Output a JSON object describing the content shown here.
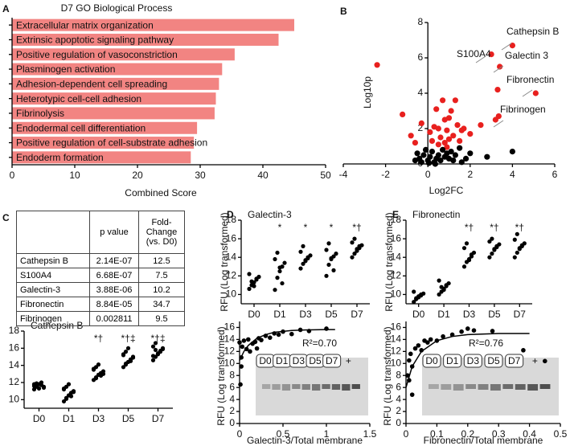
{
  "panel_labels": [
    "A",
    "B",
    "C",
    "D",
    "E"
  ],
  "table": {
    "header": [
      "p value",
      "Fold-Change (vs. D0)"
    ],
    "rows": [
      [
        "Cathepsin B",
        "2.14E-07",
        "12.5"
      ],
      [
        "S100A4",
        "6.68E-07",
        "7.5"
      ],
      [
        "Galectin-3",
        "3.88E-06",
        "10.2"
      ],
      [
        "Fibronectin",
        "8.84E-05",
        "34.7"
      ],
      [
        "Fibrinogen",
        "0.002811",
        "9.5"
      ]
    ]
  },
  "chart_data": [
    {
      "type": "hbar",
      "title": "D7 GO Biological Process",
      "x_label": "Combined Score",
      "color": "#f28482",
      "categories": [
        "Extracellular matrix organization",
        "Extrinsic apoptotic signaling pathway",
        "Positive regulation of vasoconstriction",
        "Plasminogen activation",
        "Adhesion-dependent cell spreading",
        "Heterotypic cell-cell adhesion",
        "Fibrinolysis",
        "Endodermal cell differentiation",
        "Positive regulation of cell-substrate adhesion",
        "Endoderm formation"
      ],
      "values": [
        45,
        42.5,
        35.5,
        33.5,
        33,
        32.5,
        32.3,
        29.5,
        29,
        28.5
      ],
      "xlim": [
        0,
        50
      ],
      "xticks": [
        0,
        10,
        20,
        30,
        40,
        50
      ]
    },
    {
      "type": "scatter",
      "x_label": "Log2FC",
      "y_label": "Log10p",
      "xlim": [
        -4,
        6
      ],
      "ylim": [
        0,
        8
      ],
      "xticks": [
        -4,
        -2,
        0,
        2,
        4,
        6
      ],
      "yticks": [
        0,
        2,
        4,
        6,
        8
      ],
      "annotations": [
        "Cathepsin B",
        "S100A4",
        "Galectin 3",
        "Fibronectin",
        "Fibrinogen"
      ],
      "series": [
        {
          "color": "#e8201e",
          "x": [
            -2.4,
            -1.2,
            -0.3,
            0.1,
            0.3,
            0.4,
            0.5,
            0.6,
            0.7,
            0.8,
            0.9,
            1.0,
            1.1,
            1.2,
            1.3,
            1.4,
            1.5,
            0.8,
            1.6,
            1.7,
            -0.6,
            0.2,
            0.5,
            1.0,
            2.0,
            2.5,
            3.3,
            3.0,
            3.4,
            4.0,
            5.1,
            3.2,
            3.35,
            -0.8,
            0.9
          ],
          "values": [
            5.6,
            2.8,
            2.3,
            1.8,
            2.1,
            3.1,
            2.0,
            1.5,
            3.6,
            2.5,
            1.9,
            2.6,
            3.0,
            1.6,
            3.6,
            2.2,
            1.3,
            1.2,
            1.9,
            2.0,
            1.2,
            1.3,
            1.1,
            1.4,
            1.7,
            2.2,
            4.2,
            6.2,
            5.5,
            6.7,
            4.0,
            2.5,
            2.7,
            1.6,
            0.95
          ]
        },
        {
          "color": "#000000",
          "x": [
            -0.5,
            -0.4,
            -0.3,
            -0.2,
            -0.1,
            0,
            0.1,
            0.2,
            0.3,
            0.4,
            0.5,
            0.6,
            0.7,
            0.8,
            0.9,
            1.0,
            1.1,
            1.2,
            1.3,
            1.5,
            1.8,
            2.0,
            2.8,
            4.0,
            -0.6,
            0.05,
            0.35,
            1.6
          ],
          "values": [
            0.6,
            0.3,
            0.1,
            0.5,
            0.8,
            0.2,
            0.4,
            0.7,
            0.1,
            0.3,
            0.5,
            0.2,
            0.8,
            0.4,
            0.6,
            0.3,
            0.7,
            0.2,
            0.5,
            0.9,
            0.3,
            0.6,
            0.4,
            0.7,
            0.2,
            0.05,
            0,
            0.1
          ]
        }
      ]
    },
    {
      "type": "dot",
      "title": "Cathepsin B",
      "categories": [
        "D0",
        "D1",
        "D3",
        "D5",
        "D7"
      ],
      "ylim": [
        9,
        18
      ],
      "yticks": [
        10,
        12,
        14,
        16,
        18
      ],
      "markers": [
        null,
        null,
        "*†",
        "*†‡",
        "*†‡"
      ],
      "values": [
        [
          11.2,
          11.5,
          11.8,
          12.0,
          11.4,
          11.6,
          11.9,
          11.3,
          11.7,
          11.5,
          11.8,
          11.6
        ],
        [
          9.8,
          10.2,
          10.5,
          10.8,
          11.0,
          11.2,
          11.5,
          11.8,
          10.4,
          10.9,
          11.3,
          10.1
        ],
        [
          12.3,
          12.6,
          12.9,
          13.1,
          13.3,
          13.5,
          13.8,
          14.1,
          12.8,
          13.0,
          13.6,
          12.5
        ],
        [
          13.8,
          14.1,
          14.4,
          14.7,
          15.0,
          15.3,
          15.6,
          16.0,
          14.5,
          14.9,
          15.2,
          14.2
        ],
        [
          14.6,
          15.0,
          15.3,
          15.6,
          15.9,
          16.2,
          16.6,
          15.4,
          15.7,
          16.0,
          15.1,
          15.8
        ]
      ]
    },
    {
      "type": "dot",
      "title": "Galectin-3",
      "y_label": "RFU (Log transformed)",
      "categories": [
        "D0",
        "D1",
        "D3",
        "D5",
        "D7"
      ],
      "ylim": [
        9,
        18
      ],
      "yticks": [
        10,
        12,
        14,
        16,
        18
      ],
      "markers": [
        null,
        "*",
        "*",
        "*",
        "*†"
      ],
      "values": [
        [
          10.6,
          11.0,
          11.3,
          11.6,
          11.9,
          12.2,
          11.4,
          10.9,
          11.7
        ],
        [
          10.5,
          11.8,
          12.5,
          13.0,
          13.4,
          13.8,
          14.5,
          12.9,
          11.2
        ],
        [
          12.8,
          13.3,
          13.6,
          13.9,
          14.2,
          14.6,
          15.2,
          13.7,
          14.0
        ],
        [
          12.0,
          13.2,
          13.8,
          14.1,
          14.4,
          14.8,
          15.5,
          13.9,
          12.6
        ],
        [
          14.0,
          14.4,
          14.7,
          15.0,
          15.3,
          15.6,
          16.0,
          14.9,
          15.2
        ]
      ]
    },
    {
      "type": "fit",
      "x_label": "Galectin-3/Total membrane",
      "y_label": "RFU (Log transformed)",
      "annotation": "R²=0.70",
      "xlim": [
        0,
        1.5
      ],
      "ylim": [
        0,
        17
      ],
      "xticks": [
        0,
        0.5,
        1,
        1.5
      ],
      "yticks": [
        0,
        2,
        4,
        6,
        8,
        10,
        12,
        14,
        16
      ],
      "blot_labels": [
        "D0",
        "D1",
        "D3",
        "D5",
        "D7",
        "+"
      ],
      "x": [
        0,
        0.02,
        0.03,
        0.05,
        0.08,
        0.1,
        0.12,
        0.15,
        0.18,
        0.2,
        0.22,
        0.25,
        0.3,
        0.35,
        0.4,
        0.45,
        0.5,
        0.6,
        0.7,
        0.8,
        1.0,
        0.02,
        0.01
      ],
      "values": [
        13.5,
        11,
        12.8,
        13.8,
        12.4,
        14,
        12,
        13.3,
        13.6,
        12.5,
        14.2,
        13.9,
        14.6,
        14.3,
        15,
        14.8,
        15.3,
        14.9,
        15.6,
        15.4,
        15.8,
        9.5,
        6.5
      ],
      "fit": {
        "x": [
          0,
          0.05,
          0.1,
          0.2,
          0.3,
          0.4,
          0.6,
          0.8,
          1.0,
          1.1
        ],
        "values": [
          10.5,
          12,
          13,
          14.2,
          14.8,
          15.2,
          15.5,
          15.6,
          15.65,
          15.65
        ]
      }
    },
    {
      "type": "dot",
      "title": "Fibronectin",
      "y_label": "RFU (Log transformed)",
      "categories": [
        "D0",
        "D1",
        "D3",
        "D5",
        "D7"
      ],
      "ylim": [
        9,
        18
      ],
      "yticks": [
        10,
        12,
        14,
        16,
        18
      ],
      "markers": [
        null,
        null,
        "*†",
        "*†",
        "*†"
      ],
      "values": [
        [
          9.2,
          9.5,
          9.7,
          9.9,
          10.1,
          10.3,
          9.6,
          9.8,
          10.0
        ],
        [
          10.0,
          10.3,
          10.6,
          10.9,
          11.2,
          11.5,
          10.8,
          10.5,
          11.0
        ],
        [
          13.0,
          13.5,
          13.8,
          14.1,
          14.5,
          15.0,
          15.5,
          13.7,
          14.3
        ],
        [
          14.0,
          14.4,
          14.8,
          15.1,
          15.4,
          15.7,
          16.0,
          14.9,
          15.2
        ],
        [
          14.0,
          14.5,
          14.9,
          15.2,
          15.5,
          15.9,
          16.5,
          15.0,
          15.3
        ]
      ]
    },
    {
      "type": "fit",
      "x_label": "Fibronectin/Total membrane",
      "y_label": "RFU (Log transformed)",
      "annotation": "R²=0.76",
      "xlim": [
        0,
        0.5
      ],
      "ylim": [
        0,
        17
      ],
      "xticks": [
        0,
        0.1,
        0.2,
        0.3,
        0.4,
        0.5
      ],
      "yticks": [
        0,
        2,
        4,
        6,
        8,
        10,
        12,
        14,
        16
      ],
      "blot_labels": [
        "D0",
        "D1",
        "D3",
        "D5",
        "D7",
        "+"
      ],
      "x": [
        0.005,
        0.01,
        0.015,
        0.02,
        0.03,
        0.04,
        0.05,
        0.06,
        0.07,
        0.08,
        0.1,
        0.12,
        0.15,
        0.18,
        0.2,
        0.22,
        0.28,
        0.38,
        0.45,
        0.02,
        0.01
      ],
      "values": [
        8,
        10.5,
        11.6,
        9.5,
        12.5,
        13,
        12.2,
        13.8,
        13.5,
        14,
        13.8,
        14.5,
        14.8,
        15.3,
        15.8,
        15.5,
        15.4,
        12.2,
        10.4,
        4.8,
        7.2
      ],
      "fit": {
        "x": [
          0,
          0.02,
          0.05,
          0.1,
          0.15,
          0.2,
          0.3,
          0.4
        ],
        "values": [
          6,
          9.5,
          12,
          13.8,
          14.5,
          14.8,
          15,
          15
        ]
      }
    }
  ]
}
